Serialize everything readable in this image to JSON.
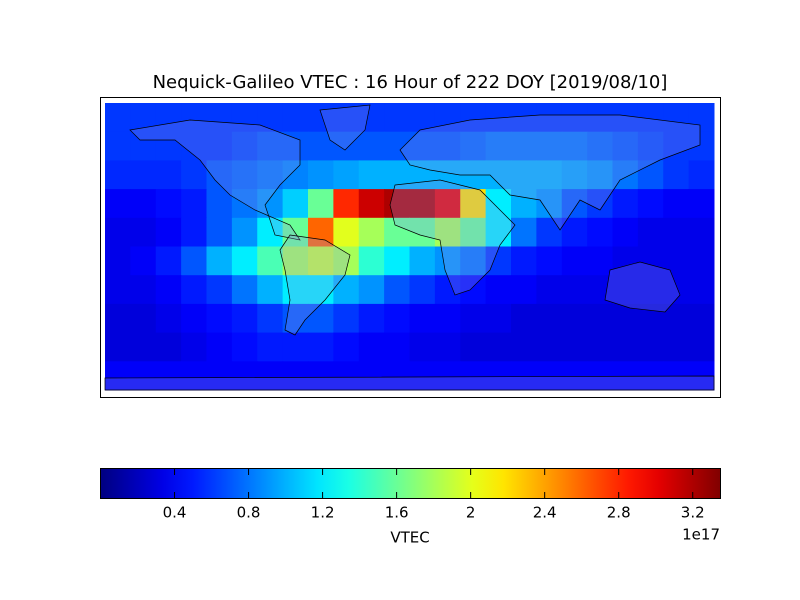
{
  "chart_data": {
    "type": "heatmap",
    "title": "Nequick-Galileo VTEC : 16 Hour of 222 DOY [2019/08/10]",
    "xlim": [
      -180,
      180
    ],
    "ylim": [
      -90,
      90
    ],
    "values": [
      [
        0.6,
        0.6,
        0.6,
        0.6,
        0.6,
        0.6,
        0.6,
        0.6,
        0.6,
        0.6,
        0.6,
        0.6,
        0.6,
        0.6,
        0.6,
        0.6,
        0.6,
        0.6,
        0.6,
        0.6,
        0.6,
        0.6,
        0.6,
        0.6
      ],
      [
        0.6,
        0.6,
        0.6,
        0.6,
        0.6,
        0.65,
        0.7,
        0.7,
        0.7,
        0.7,
        0.7,
        0.7,
        0.7,
        0.7,
        0.75,
        0.8,
        0.8,
        0.8,
        0.8,
        0.75,
        0.7,
        0.65,
        0.6,
        0.6
      ],
      [
        0.55,
        0.55,
        0.55,
        0.6,
        0.7,
        0.75,
        0.8,
        0.85,
        0.9,
        0.95,
        1.0,
        1.0,
        1.0,
        1.0,
        1.0,
        1.0,
        1.0,
        1.0,
        0.95,
        0.9,
        0.8,
        0.7,
        0.6,
        0.55
      ],
      [
        0.4,
        0.4,
        0.45,
        0.5,
        0.7,
        0.8,
        0.9,
        1.1,
        1.6,
        2.8,
        3.1,
        3.2,
        3.2,
        3.0,
        2.2,
        1.2,
        1.0,
        0.9,
        0.7,
        0.6,
        0.5,
        0.45,
        0.4,
        0.4
      ],
      [
        0.35,
        0.35,
        0.4,
        0.5,
        0.7,
        0.9,
        1.2,
        1.6,
        2.6,
        2.0,
        1.8,
        1.6,
        1.6,
        1.8,
        1.6,
        1.2,
        0.8,
        0.6,
        0.5,
        0.45,
        0.4,
        0.35,
        0.35,
        0.35
      ],
      [
        0.35,
        0.4,
        0.5,
        0.7,
        1.0,
        1.2,
        1.5,
        1.8,
        1.9,
        1.8,
        1.4,
        1.2,
        1.0,
        0.9,
        0.8,
        0.6,
        0.5,
        0.45,
        0.4,
        0.4,
        0.35,
        0.35,
        0.35,
        0.35
      ],
      [
        0.35,
        0.35,
        0.4,
        0.5,
        0.6,
        0.8,
        1.0,
        1.2,
        1.2,
        1.0,
        0.9,
        0.7,
        0.6,
        0.5,
        0.45,
        0.4,
        0.4,
        0.35,
        0.35,
        0.35,
        0.35,
        0.35,
        0.35,
        0.35
      ],
      [
        0.3,
        0.3,
        0.35,
        0.4,
        0.45,
        0.5,
        0.6,
        0.7,
        0.7,
        0.6,
        0.5,
        0.45,
        0.4,
        0.4,
        0.35,
        0.35,
        0.3,
        0.3,
        0.3,
        0.3,
        0.3,
        0.3,
        0.3,
        0.3
      ],
      [
        0.3,
        0.3,
        0.3,
        0.35,
        0.4,
        0.45,
        0.5,
        0.5,
        0.5,
        0.45,
        0.4,
        0.4,
        0.35,
        0.35,
        0.3,
        0.3,
        0.3,
        0.3,
        0.3,
        0.3,
        0.3,
        0.3,
        0.3,
        0.3
      ],
      [
        0.4,
        0.4,
        0.4,
        0.4,
        0.4,
        0.4,
        0.4,
        0.4,
        0.4,
        0.4,
        0.4,
        0.4,
        0.4,
        0.4,
        0.4,
        0.4,
        0.4,
        0.4,
        0.4,
        0.4,
        0.4,
        0.4,
        0.4,
        0.4
      ]
    ],
    "colorbar": {
      "clim": [
        0,
        3.35
      ],
      "ticks": [
        0.4,
        0.8,
        1.2,
        1.6,
        2.0,
        2.4,
        2.8,
        3.2
      ],
      "label": "VTEC",
      "offset": "1e17",
      "colormap": "jet"
    }
  }
}
